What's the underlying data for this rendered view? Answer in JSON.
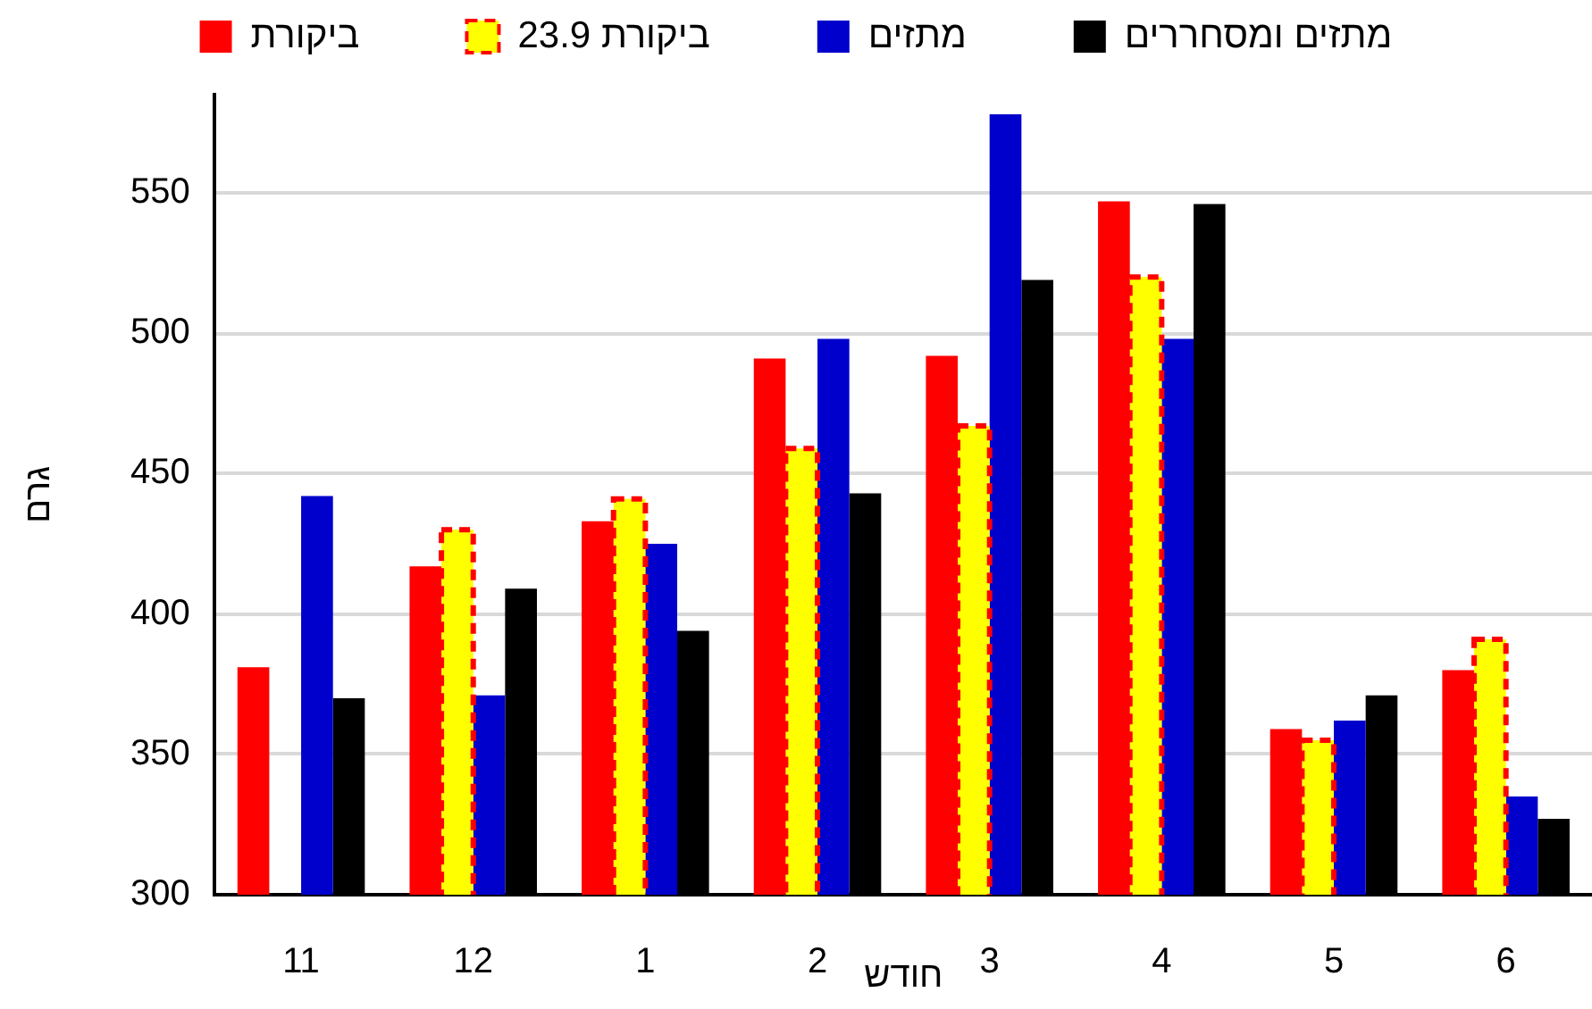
{
  "chart_data": {
    "type": "bar",
    "categories": [
      "11",
      "12",
      "1",
      "2",
      "3",
      "4",
      "5",
      "6"
    ],
    "xlabel": "חודש",
    "ylabel": "גרם",
    "series": [
      {
        "name": "ביקורת",
        "color": "#ff0000",
        "values": [
          381,
          417,
          433,
          491,
          492,
          547,
          359,
          380
        ]
      },
      {
        "name": "ביקורת 23.9",
        "color": "#ffff00",
        "line_style": "dashed",
        "values": [
          null,
          430,
          441,
          459,
          467,
          520,
          355,
          391
        ]
      },
      {
        "name": "מתזים",
        "color": "#0000cc",
        "values": [
          442,
          371,
          425,
          498,
          578,
          498,
          362,
          335
        ]
      },
      {
        "name": "מתזים ומסחררים",
        "color": "#000000",
        "values": [
          370,
          409,
          394,
          443,
          519,
          546,
          371,
          327
        ]
      }
    ],
    "ylim": [
      300,
      585
    ],
    "yticks": [
      300,
      350,
      400,
      450,
      500,
      550
    ],
    "grid": "y",
    "legend": "top"
  }
}
